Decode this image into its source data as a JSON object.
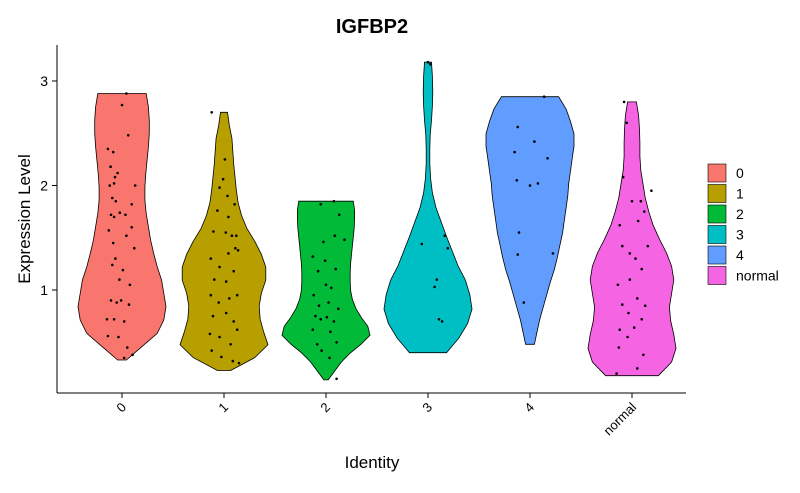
{
  "chart_data": {
    "type": "violin",
    "title": "IGFBP2",
    "xlabel": "Identity",
    "ylabel": "Expression Level",
    "categories": [
      "0",
      "1",
      "2",
      "3",
      "4",
      "normal"
    ],
    "y_ticks": [
      1,
      2,
      3
    ],
    "ylim": [
      0.05,
      3.25
    ],
    "legend": {
      "position": "right",
      "title": ""
    },
    "grid": false,
    "series": [
      {
        "name": "0",
        "color": "#F8766D",
        "y_min": 0.33,
        "y_max": 2.88,
        "width_profile": [
          0.1,
          0.45,
          0.8,
          0.95,
          1.0,
          0.95,
          0.9,
          0.8,
          0.72,
          0.65,
          0.6,
          0.55,
          0.52,
          0.52,
          0.54,
          0.57,
          0.6,
          0.62,
          0.62,
          0.6,
          0.55
        ],
        "points": [
          [
            -0.32,
            2.35
          ],
          [
            -0.2,
            2.32
          ],
          [
            -0.26,
            2.18
          ],
          [
            -0.16,
            2.08
          ],
          [
            -0.18,
            2.02
          ],
          [
            -0.1,
            2.12
          ],
          [
            -0.28,
            2.0
          ],
          [
            -0.22,
            1.88
          ],
          [
            -0.14,
            1.85
          ],
          [
            -0.25,
            1.72
          ],
          [
            -0.18,
            1.7
          ],
          [
            -0.05,
            1.74
          ],
          [
            0.08,
            1.72
          ],
          [
            0.22,
            1.82
          ],
          [
            0.3,
            2.0
          ],
          [
            0.14,
            2.48
          ],
          [
            -0.3,
            1.57
          ],
          [
            -0.2,
            1.45
          ],
          [
            0.28,
            1.4
          ],
          [
            0.1,
            1.52
          ],
          [
            -0.15,
            1.3
          ],
          [
            -0.22,
            1.24
          ],
          [
            -0.06,
            1.1
          ],
          [
            0.02,
            1.19
          ],
          [
            0.18,
            1.05
          ],
          [
            -0.25,
            0.9
          ],
          [
            -0.12,
            0.88
          ],
          [
            -0.02,
            0.9
          ],
          [
            0.16,
            0.86
          ],
          [
            -0.34,
            0.72
          ],
          [
            -0.18,
            0.72
          ],
          [
            0.05,
            0.7
          ],
          [
            -0.08,
            0.55
          ],
          [
            0.12,
            0.45
          ],
          [
            0.05,
            0.35
          ],
          [
            0.24,
            0.38
          ],
          [
            0.0,
            2.77
          ],
          [
            0.1,
            2.88
          ],
          [
            -0.32,
            0.56
          ],
          [
            0.22,
            1.6
          ]
        ]
      },
      {
        "name": "1",
        "color": "#B79F00",
        "y_min": 0.23,
        "y_max": 2.7,
        "width_profile": [
          0.15,
          0.7,
          1.0,
          0.9,
          0.82,
          0.8,
          0.85,
          0.95,
          0.95,
          0.85,
          0.7,
          0.52,
          0.4,
          0.32,
          0.28,
          0.25,
          0.22,
          0.2,
          0.18,
          0.12,
          0.08
        ],
        "points": [
          [
            -0.28,
            2.7
          ],
          [
            0.02,
            2.25
          ],
          [
            -0.02,
            2.06
          ],
          [
            -0.1,
            1.98
          ],
          [
            0.08,
            1.9
          ],
          [
            0.24,
            1.82
          ],
          [
            -0.15,
            1.76
          ],
          [
            -0.24,
            1.56
          ],
          [
            0.04,
            1.55
          ],
          [
            0.18,
            1.52
          ],
          [
            0.26,
            1.4
          ],
          [
            -0.3,
            1.3
          ],
          [
            -0.1,
            1.22
          ],
          [
            0.1,
            1.35
          ],
          [
            0.32,
            1.38
          ],
          [
            -0.22,
            1.1
          ],
          [
            0.05,
            1.08
          ],
          [
            0.22,
            1.18
          ],
          [
            -0.3,
            0.95
          ],
          [
            -0.12,
            0.88
          ],
          [
            0.12,
            0.92
          ],
          [
            0.3,
            0.95
          ],
          [
            -0.25,
            0.75
          ],
          [
            0.05,
            0.78
          ],
          [
            0.22,
            0.7
          ],
          [
            0.3,
            0.62
          ],
          [
            -0.32,
            0.58
          ],
          [
            -0.1,
            0.55
          ],
          [
            0.15,
            0.48
          ],
          [
            -0.28,
            0.42
          ],
          [
            -0.06,
            0.36
          ],
          [
            0.2,
            0.32
          ],
          [
            0.34,
            0.3
          ],
          [
            0.28,
            1.52
          ],
          [
            0.1,
            1.7
          ]
        ]
      },
      {
        "name": "2",
        "color": "#00BA38",
        "y_min": 0.14,
        "y_max": 1.85,
        "width_profile": [
          0.05,
          0.2,
          0.35,
          0.55,
          0.8,
          1.0,
          0.95,
          0.8,
          0.68,
          0.6,
          0.56,
          0.55,
          0.55,
          0.56,
          0.58,
          0.6,
          0.62,
          0.64,
          0.65,
          0.65,
          0.62
        ],
        "points": [
          [
            -0.12,
            1.82
          ],
          [
            0.18,
            1.85
          ],
          [
            -0.3,
            1.32
          ],
          [
            0.2,
            1.52
          ],
          [
            -0.06,
            1.46
          ],
          [
            0.22,
            1.2
          ],
          [
            -0.18,
            1.18
          ],
          [
            0.0,
            1.05
          ],
          [
            0.12,
            1.02
          ],
          [
            -0.28,
            0.95
          ],
          [
            -0.16,
            0.85
          ],
          [
            0.06,
            0.88
          ],
          [
            0.28,
            0.82
          ],
          [
            -0.24,
            0.75
          ],
          [
            -0.12,
            0.72
          ],
          [
            0.02,
            0.74
          ],
          [
            0.18,
            0.7
          ],
          [
            -0.3,
            0.62
          ],
          [
            0.1,
            0.6
          ],
          [
            -0.2,
            0.48
          ],
          [
            0.24,
            0.5
          ],
          [
            -0.1,
            0.42
          ],
          [
            0.08,
            0.35
          ],
          [
            0.24,
            0.15
          ],
          [
            0.3,
            1.72
          ],
          [
            0.42,
            1.48
          ],
          [
            -0.02,
            1.28
          ]
        ]
      },
      {
        "name": "3",
        "color": "#00BFC4",
        "y_min": 0.4,
        "y_max": 3.18,
        "width_profile": [
          0.42,
          0.7,
          0.9,
          1.0,
          0.95,
          0.85,
          0.68,
          0.55,
          0.42,
          0.3,
          0.18,
          0.1,
          0.06,
          0.04,
          0.04,
          0.05,
          0.08,
          0.1,
          0.11,
          0.1,
          0.08
        ],
        "points": [
          [
            0.0,
            3.18
          ],
          [
            0.05,
            3.16
          ],
          [
            -0.14,
            1.44
          ],
          [
            0.38,
            1.52
          ],
          [
            0.2,
            1.1
          ],
          [
            0.15,
            1.03
          ],
          [
            0.25,
            0.72
          ],
          [
            0.32,
            0.7
          ],
          [
            0.45,
            1.4
          ]
        ]
      },
      {
        "name": "4",
        "color": "#619CFF",
        "y_min": 0.48,
        "y_max": 2.85,
        "width_profile": [
          0.1,
          0.16,
          0.22,
          0.3,
          0.38,
          0.46,
          0.55,
          0.62,
          0.68,
          0.74,
          0.78,
          0.82,
          0.86,
          0.88,
          0.92,
          0.96,
          1.0,
          1.0,
          0.92,
          0.82,
          0.65
        ],
        "points": [
          [
            -0.28,
            2.56
          ],
          [
            0.1,
            2.42
          ],
          [
            -0.35,
            2.32
          ],
          [
            -0.3,
            2.05
          ],
          [
            0.18,
            2.02
          ],
          [
            0.4,
            2.26
          ],
          [
            0.0,
            2.0
          ],
          [
            0.32,
            2.85
          ],
          [
            -0.25,
            1.55
          ],
          [
            -0.28,
            1.34
          ],
          [
            -0.14,
            0.88
          ],
          [
            0.52,
            1.35
          ]
        ]
      },
      {
        "name": "normal",
        "color": "#F564E3",
        "y_min": 0.18,
        "y_max": 2.8,
        "width_profile": [
          0.6,
          0.9,
          1.0,
          0.95,
          0.88,
          0.85,
          0.9,
          0.95,
          0.9,
          0.78,
          0.62,
          0.48,
          0.38,
          0.3,
          0.25,
          0.2,
          0.18,
          0.18,
          0.17,
          0.15,
          0.1
        ],
        "points": [
          [
            -0.18,
            2.8
          ],
          [
            -0.12,
            2.6
          ],
          [
            -0.2,
            2.08
          ],
          [
            0.0,
            1.85
          ],
          [
            0.2,
            1.85
          ],
          [
            -0.28,
            1.62
          ],
          [
            -0.22,
            1.42
          ],
          [
            0.14,
            1.66
          ],
          [
            0.28,
            1.75
          ],
          [
            -0.05,
            1.35
          ],
          [
            0.08,
            1.3
          ],
          [
            0.22,
            1.2
          ],
          [
            -0.32,
            1.05
          ],
          [
            -0.05,
            1.1
          ],
          [
            -0.22,
            0.86
          ],
          [
            0.12,
            0.92
          ],
          [
            0.3,
            0.85
          ],
          [
            -0.28,
            0.62
          ],
          [
            0.05,
            0.64
          ],
          [
            0.22,
            0.72
          ],
          [
            -0.3,
            0.45
          ],
          [
            -0.1,
            0.55
          ],
          [
            0.26,
            0.38
          ],
          [
            0.12,
            0.25
          ],
          [
            -0.35,
            0.2
          ],
          [
            0.44,
            1.95
          ],
          [
            0.36,
            1.42
          ],
          [
            -0.08,
            0.78
          ]
        ]
      }
    ]
  }
}
